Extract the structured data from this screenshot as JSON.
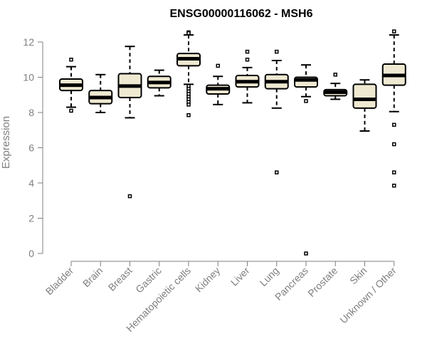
{
  "chart_data": {
    "type": "box",
    "title": "ENSG00000116062 - MSH6",
    "xlabel": "",
    "ylabel": "Expression",
    "ylim": [
      0,
      12.6
    ],
    "yticks": [
      0,
      2,
      4,
      6,
      8,
      10,
      12
    ],
    "grid": false,
    "colors": {
      "box_fill": "#efe9d2",
      "box_stroke": "#000000",
      "median": "#000000",
      "axis": "#7f7f7f",
      "text": "#7f7f7f",
      "title": "#000000"
    },
    "categories": [
      "Bladder",
      "Brain",
      "Breast",
      "Gastric",
      "Hematopoietic cells",
      "Kidney",
      "Liver",
      "Lung",
      "Pancreas",
      "Prostate",
      "Skin",
      "Unknown / Other"
    ],
    "boxes": [
      {
        "category": "Bladder",
        "whisker_low": 8.3,
        "q1": 9.25,
        "median": 9.55,
        "q3": 9.9,
        "whisker_high": 10.6,
        "outliers": [
          8.1,
          11.0
        ]
      },
      {
        "category": "Brain",
        "whisker_low": 8.0,
        "q1": 8.5,
        "median": 8.85,
        "q3": 9.25,
        "whisker_high": 10.15,
        "outliers": []
      },
      {
        "category": "Breast",
        "whisker_low": 7.7,
        "q1": 8.85,
        "median": 9.5,
        "q3": 10.2,
        "whisker_high": 11.75,
        "outliers": [
          3.25
        ]
      },
      {
        "category": "Gastric",
        "whisker_low": 8.95,
        "q1": 9.4,
        "median": 9.7,
        "q3": 10.05,
        "whisker_high": 10.4,
        "outliers": []
      },
      {
        "category": "Hematopoietic cells",
        "whisker_low": 9.6,
        "q1": 10.65,
        "median": 11.05,
        "q3": 11.35,
        "whisker_high": 12.4,
        "outliers": [
          12.55,
          12.5,
          9.5,
          9.35,
          9.2,
          9.05,
          8.9,
          8.75,
          8.6,
          8.45,
          7.85
        ]
      },
      {
        "category": "Kidney",
        "whisker_low": 8.45,
        "q1": 9.05,
        "median": 9.35,
        "q3": 9.55,
        "whisker_high": 10.05,
        "outliers": [
          10.65
        ]
      },
      {
        "category": "Liver",
        "whisker_low": 8.55,
        "q1": 9.45,
        "median": 9.75,
        "q3": 10.1,
        "whisker_high": 10.55,
        "outliers": [
          11.0,
          11.45
        ]
      },
      {
        "category": "Lung",
        "whisker_low": 8.25,
        "q1": 9.35,
        "median": 9.75,
        "q3": 10.15,
        "whisker_high": 10.95,
        "outliers": [
          11.45,
          4.6
        ]
      },
      {
        "category": "Pancreas",
        "whisker_low": 8.9,
        "q1": 9.45,
        "median": 9.85,
        "q3": 10.0,
        "whisker_high": 10.7,
        "outliers": [
          8.65,
          0.0
        ]
      },
      {
        "category": "Prostate",
        "whisker_low": 8.75,
        "q1": 8.95,
        "median": 9.15,
        "q3": 9.3,
        "whisker_high": 9.65,
        "outliers": [
          10.15
        ]
      },
      {
        "category": "Skin",
        "whisker_low": 6.95,
        "q1": 8.25,
        "median": 8.75,
        "q3": 9.6,
        "whisker_high": 9.85,
        "outliers": []
      },
      {
        "category": "Unknown / Other",
        "whisker_low": 8.05,
        "q1": 9.55,
        "median": 10.1,
        "q3": 10.75,
        "whisker_high": 12.4,
        "outliers": [
          12.6,
          7.3,
          6.2,
          4.6,
          3.85
        ]
      }
    ]
  }
}
